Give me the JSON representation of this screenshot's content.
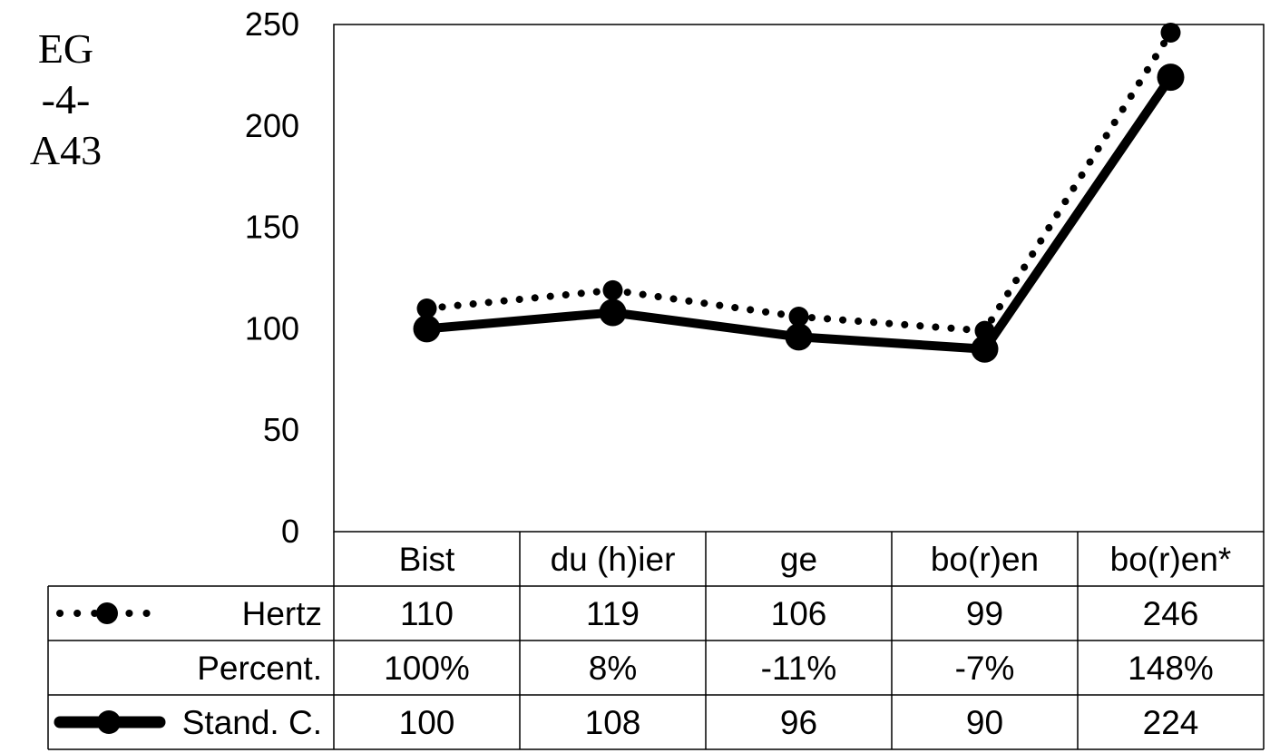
{
  "side_title": [
    "EG",
    "-4-",
    "A43"
  ],
  "chart_data": {
    "type": "line",
    "categories": [
      "Bist",
      "du (h)ier",
      "ge",
      "bo(r)en",
      "bo(r)en*"
    ],
    "ylim": [
      0,
      250
    ],
    "yticks": [
      0,
      50,
      100,
      150,
      200,
      250
    ],
    "grid": false,
    "series": [
      {
        "name": "Hertz",
        "values": [
          110,
          119,
          106,
          99,
          246
        ],
        "style": "dotted",
        "color": "#000000"
      },
      {
        "name": "Stand. C.",
        "values": [
          100,
          108,
          96,
          90,
          224
        ],
        "style": "solid",
        "color": "#000000"
      }
    ],
    "table": {
      "rows": [
        {
          "label": "Hertz",
          "cells": [
            "110",
            "119",
            "106",
            "99",
            "246"
          ],
          "legend": "dotted"
        },
        {
          "label": "Percent.",
          "cells": [
            "100%",
            "8%",
            "-11%",
            "-7%",
            "148%"
          ],
          "legend": "none"
        },
        {
          "label": "Stand. C.",
          "cells": [
            "100",
            "108",
            "96",
            "90",
            "224"
          ],
          "legend": "solid"
        }
      ]
    }
  }
}
